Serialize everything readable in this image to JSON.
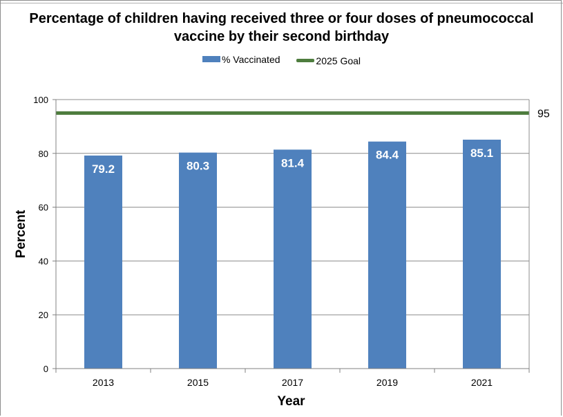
{
  "chart_data": {
    "type": "bar",
    "title": "Percentage of children having received three or four doses of pneumococcal vaccine by their second birthday",
    "categories": [
      "2013",
      "2015",
      "2017",
      "2019",
      "2021"
    ],
    "series": [
      {
        "name": "% Vaccinated",
        "values": [
          79.2,
          80.3,
          81.4,
          84.4,
          85.1
        ],
        "color": "#4f81bd"
      }
    ],
    "reference_line": {
      "name": "2025 Goal",
      "value": 95,
      "label": "95",
      "color": "#4e7d3e"
    },
    "xlabel": "Year",
    "ylabel": "Percent",
    "ylim": [
      0,
      100
    ],
    "yticks": [
      0,
      20,
      40,
      60,
      80,
      100
    ],
    "grid": true,
    "legend_position": "top"
  }
}
